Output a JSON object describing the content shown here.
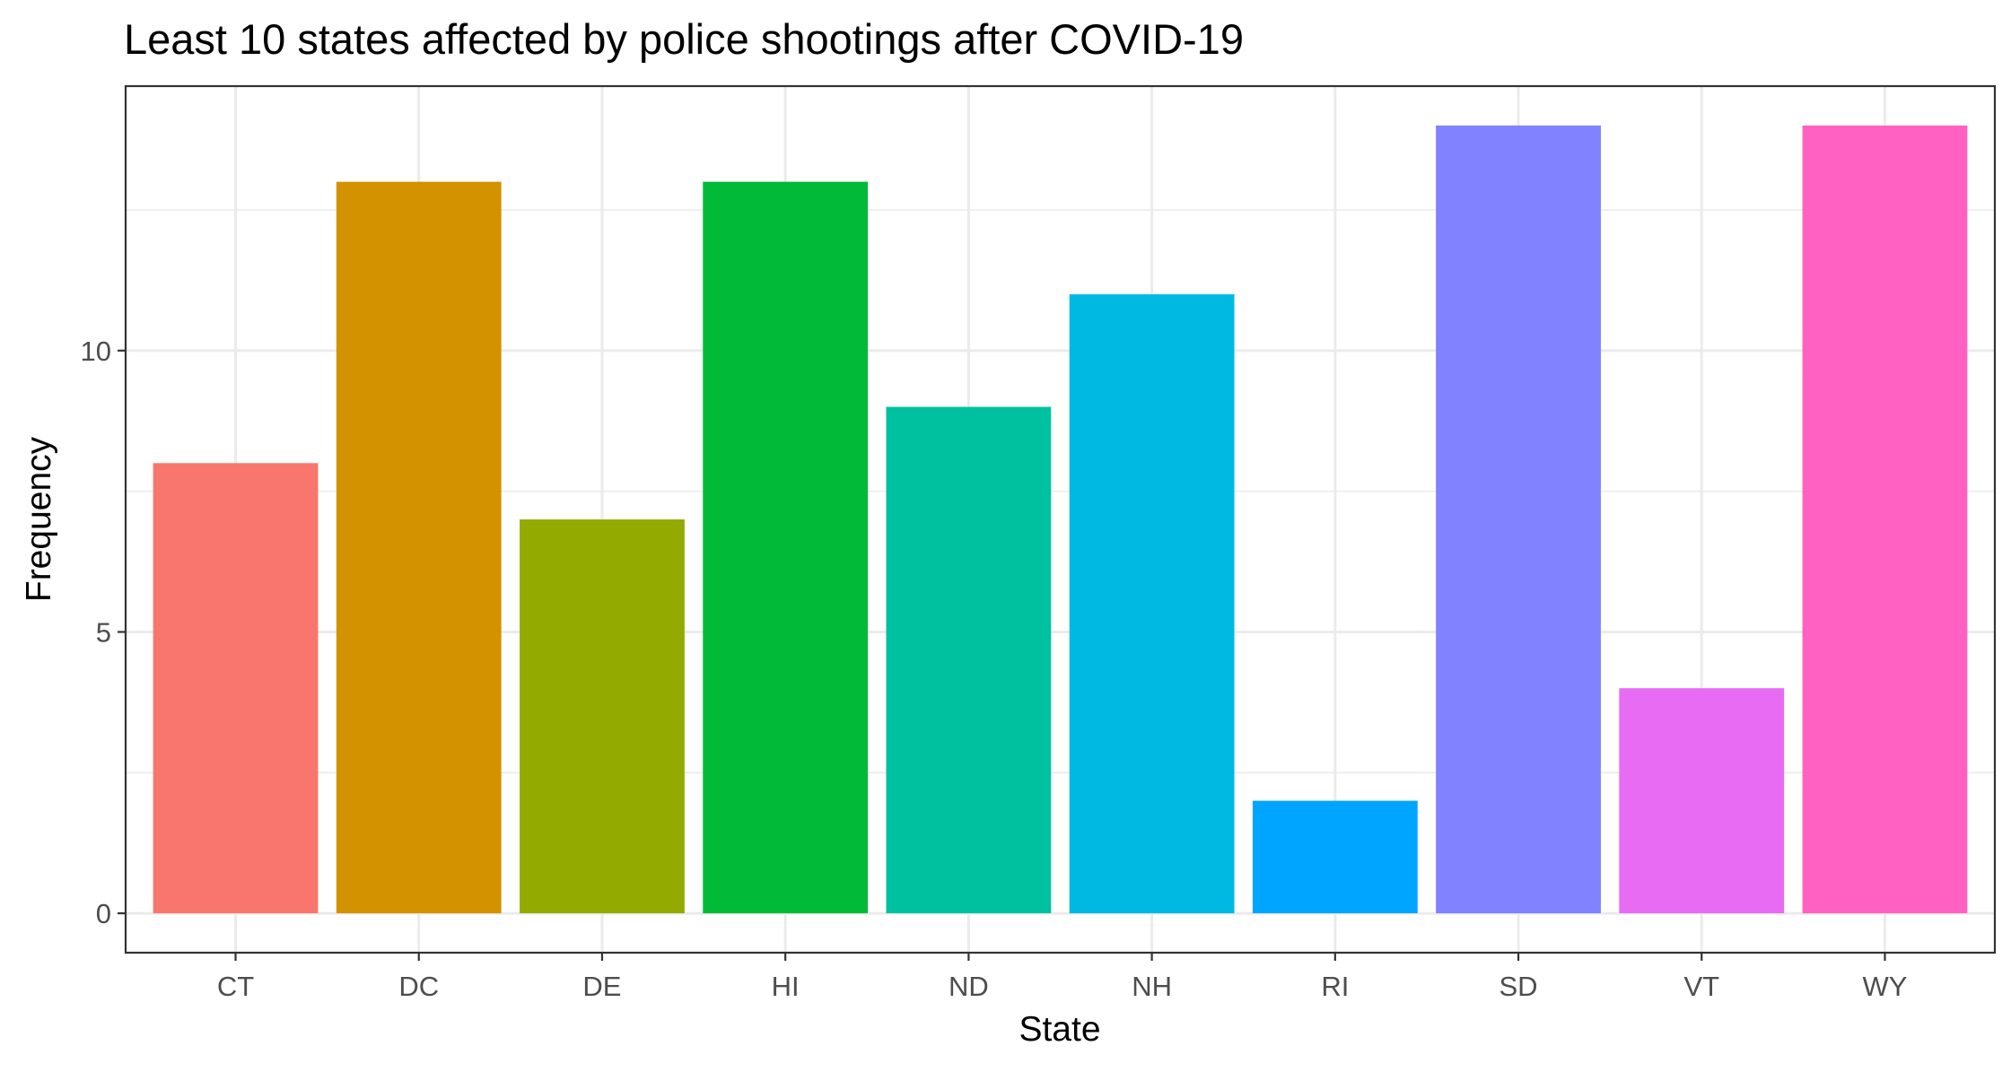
{
  "chart_data": {
    "type": "bar",
    "title": "Least 10 states affected by police shootings after COVID-19",
    "xlabel": "State",
    "ylabel": "Frequency",
    "categories": [
      "CT",
      "DC",
      "DE",
      "HI",
      "ND",
      "NH",
      "RI",
      "SD",
      "VT",
      "WY"
    ],
    "values": [
      8,
      13,
      7,
      13,
      9,
      11,
      2,
      14,
      4,
      14
    ],
    "colors": [
      "#F8766D",
      "#D39200",
      "#93AA00",
      "#00BA38",
      "#00C19F",
      "#00B9E3",
      "#00A5FF",
      "#8082FF",
      "#E76BF3",
      "#FF61C3"
    ],
    "ylim": [
      -0.7,
      14.7
    ],
    "yticks": [
      0,
      5,
      10
    ],
    "grid": true,
    "legend": "none"
  }
}
